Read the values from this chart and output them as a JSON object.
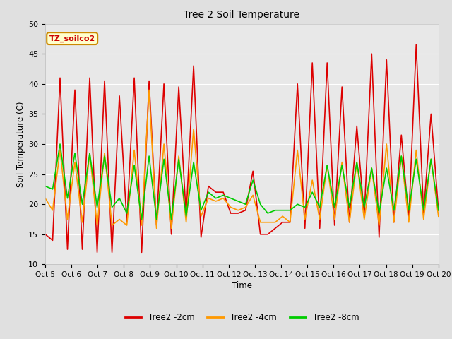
{
  "title": "Tree 2 Soil Temperature",
  "xlabel": "Time",
  "ylabel": "Soil Temperature (C)",
  "ylim": [
    10,
    50
  ],
  "xlim": [
    0,
    15
  ],
  "x_tick_labels": [
    "Oct 5",
    "Oct 6",
    "Oct 7",
    "Oct 8",
    "Oct 9",
    "Oct 10",
    "Oct 11",
    "Oct 12",
    "Oct 13",
    "Oct 14",
    "Oct 15",
    "Oct 16",
    "Oct 17",
    "Oct 18",
    "Oct 19",
    "Oct 20"
  ],
  "annotation": "TZ_soilco2",
  "line_colors": [
    "#dd0000",
    "#ff9900",
    "#00cc00"
  ],
  "line_labels": [
    "Tree2 -2cm",
    "Tree2 -4cm",
    "Tree2 -8cm"
  ],
  "fig_bg_color": "#e0e0e0",
  "plot_bg_color": "#e8e8e8",
  "grid_color": "#ffffff",
  "yticks": [
    10,
    15,
    20,
    25,
    30,
    35,
    40,
    45,
    50
  ],
  "series": {
    "red_2cm": [
      15,
      14,
      41,
      12.5,
      39,
      12.5,
      41,
      12,
      40.5,
      12,
      38,
      17,
      41,
      12,
      40.5,
      16.5,
      40,
      15,
      39.5,
      18,
      43,
      14.5,
      23,
      22,
      22,
      18.5,
      18.5,
      19,
      25.5,
      15,
      15,
      16,
      17,
      17,
      40,
      16,
      43.5,
      16,
      43.5,
      16.5,
      39.5,
      17,
      33,
      18,
      45,
      14.5,
      44,
      17,
      31.5,
      17.5,
      46.5,
      18.5,
      35,
      19
    ],
    "orange_4cm": [
      21,
      19,
      29,
      17.5,
      27,
      17,
      28.5,
      16.5,
      28.5,
      16.5,
      17.5,
      16.5,
      29,
      16.5,
      39,
      16,
      30,
      16,
      28,
      17,
      32.5,
      18,
      21,
      20.5,
      21,
      19.5,
      19,
      19.5,
      21.5,
      17,
      17,
      17,
      18,
      17,
      29,
      17.5,
      24,
      17.5,
      26.5,
      17.5,
      27,
      17,
      27,
      17.5,
      26,
      16.5,
      30,
      17,
      28,
      17,
      29,
      17.5,
      27.5,
      18
    ],
    "green_8cm": [
      23,
      22.5,
      30,
      21,
      28.5,
      20,
      28.5,
      19.5,
      28,
      19.5,
      21,
      18.5,
      26.5,
      17.5,
      28,
      17.5,
      27.5,
      17.5,
      27.5,
      18,
      27,
      19,
      22,
      21,
      21.5,
      21,
      20.5,
      20,
      24,
      20,
      18.5,
      19,
      19,
      19,
      20,
      19.5,
      22,
      19.5,
      26.5,
      19.5,
      26.5,
      19.5,
      27,
      19.5,
      26,
      18.5,
      26,
      19,
      28,
      19,
      27.5,
      19,
      27.5,
      19
    ]
  }
}
